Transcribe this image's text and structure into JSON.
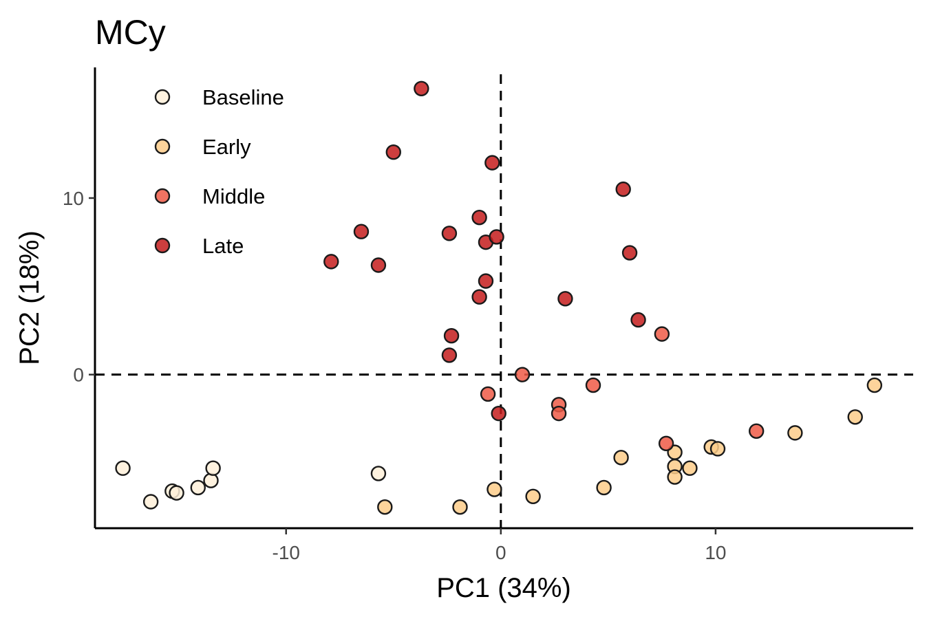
{
  "chart_data": {
    "type": "scatter",
    "title": "MCy",
    "xlabel": "PC1 (34%)",
    "ylabel": "PC2 (18%)",
    "xlim": [
      -18.9,
      19.2
    ],
    "ylim": [
      -8.7,
      17.4
    ],
    "x_ticks": [
      {
        "value": -10,
        "label": "-10"
      },
      {
        "value": 0,
        "label": "0"
      },
      {
        "value": 10,
        "label": "10"
      }
    ],
    "y_ticks": [
      {
        "value": 0,
        "label": "0"
      },
      {
        "value": 10,
        "label": "10"
      }
    ],
    "reference_lines": {
      "x": 0,
      "y": 0,
      "style": "dashed"
    },
    "grid": false,
    "legend_position": "top-left",
    "series": [
      {
        "name": "Baseline",
        "color": "#fef0d9",
        "points": [
          {
            "x": -17.6,
            "y": -5.3
          },
          {
            "x": -16.3,
            "y": -7.2
          },
          {
            "x": -15.3,
            "y": -6.6
          },
          {
            "x": -15.1,
            "y": -6.7
          },
          {
            "x": -14.1,
            "y": -6.4
          },
          {
            "x": -13.5,
            "y": -6.0
          },
          {
            "x": -13.4,
            "y": -5.3
          },
          {
            "x": -5.7,
            "y": -5.6
          }
        ]
      },
      {
        "name": "Early",
        "color": "#fdcc8a",
        "points": [
          {
            "x": -5.4,
            "y": -7.5
          },
          {
            "x": -1.9,
            "y": -7.5
          },
          {
            "x": -0.3,
            "y": -6.5
          },
          {
            "x": 1.5,
            "y": -6.9
          },
          {
            "x": 4.8,
            "y": -6.4
          },
          {
            "x": 5.6,
            "y": -4.7
          },
          {
            "x": 8.1,
            "y": -4.4
          },
          {
            "x": 8.1,
            "y": -5.2
          },
          {
            "x": 8.1,
            "y": -5.8
          },
          {
            "x": 8.8,
            "y": -5.3
          },
          {
            "x": 9.8,
            "y": -4.1
          },
          {
            "x": 10.1,
            "y": -4.2
          },
          {
            "x": 13.7,
            "y": -3.3
          },
          {
            "x": 16.5,
            "y": -2.4
          },
          {
            "x": 17.4,
            "y": -0.6
          }
        ]
      },
      {
        "name": "Middle",
        "color": "#fc8d59",
        "color_rendered": "#ef5a46",
        "points": [
          {
            "x": 1.0,
            "y": 0.0
          },
          {
            "x": -0.6,
            "y": -1.1
          },
          {
            "x": 2.7,
            "y": -1.7
          },
          {
            "x": 2.7,
            "y": -2.2
          },
          {
            "x": 4.3,
            "y": -0.6
          },
          {
            "x": 7.5,
            "y": 2.3
          },
          {
            "x": 7.7,
            "y": -3.9
          },
          {
            "x": 11.9,
            "y": -3.2
          }
        ]
      },
      {
        "name": "Late",
        "color": "#b30000",
        "color_rendered": "#c41c1c",
        "points": [
          {
            "x": -3.7,
            "y": 16.2
          },
          {
            "x": -5.0,
            "y": 12.6
          },
          {
            "x": -0.4,
            "y": 12.0
          },
          {
            "x": 5.7,
            "y": 10.5
          },
          {
            "x": -6.5,
            "y": 8.1
          },
          {
            "x": -2.4,
            "y": 8.0
          },
          {
            "x": -1.0,
            "y": 8.9
          },
          {
            "x": -0.7,
            "y": 7.5
          },
          {
            "x": -0.2,
            "y": 7.8
          },
          {
            "x": 6.0,
            "y": 6.9
          },
          {
            "x": -7.9,
            "y": 6.4
          },
          {
            "x": -5.7,
            "y": 6.2
          },
          {
            "x": -0.7,
            "y": 5.3
          },
          {
            "x": -1.0,
            "y": 4.4
          },
          {
            "x": 3.0,
            "y": 4.3
          },
          {
            "x": 6.4,
            "y": 3.1
          },
          {
            "x": -2.3,
            "y": 2.2
          },
          {
            "x": -2.4,
            "y": 1.1
          },
          {
            "x": -0.1,
            "y": -2.2
          }
        ]
      }
    ]
  }
}
